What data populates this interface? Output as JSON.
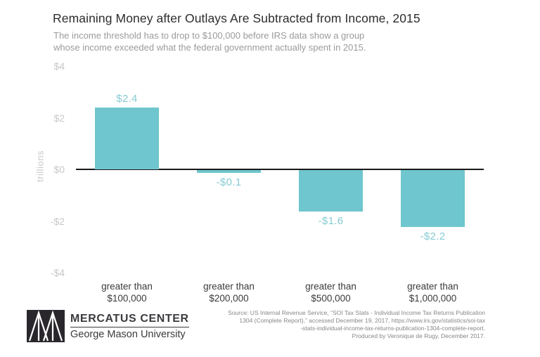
{
  "header": {
    "title": "Remaining Money after Outlays Are Subtracted from Income, 2015",
    "subtitle_lines": [
      "The income threshold has to drop to $100,000 before IRS data show a group",
      "whose income exceeded what the federal government actually spent in 2015."
    ]
  },
  "chart_data": {
    "type": "bar",
    "title": "Remaining Money after Outlays Are Subtracted from Income, 2015",
    "categories": [
      [
        "greater than",
        "$100,000"
      ],
      [
        "greater than",
        "$200,000"
      ],
      [
        "greater than",
        "$500,000"
      ],
      [
        "greater than",
        "$1,000,000"
      ]
    ],
    "values": [
      2.4,
      -0.1,
      -1.6,
      -2.2
    ],
    "value_labels": [
      "$2.4",
      "-$0.1",
      "-$1.6",
      "-$2.2"
    ],
    "xlabel": "",
    "ylabel": "trillions",
    "ylim": [
      -4,
      4
    ],
    "yticks": [
      {
        "value": 4,
        "label": "$4"
      },
      {
        "value": 2,
        "label": "$2"
      },
      {
        "value": 0,
        "label": "$0"
      },
      {
        "value": -2,
        "label": "-$2"
      },
      {
        "value": -4,
        "label": "-$4"
      }
    ],
    "grid": false,
    "legend": "none",
    "bar_color": "#6fc6ce",
    "value_label_color": "#85cbd3",
    "zero_line_color": "#191919"
  },
  "footer": {
    "logo": {
      "name": "MERCATUS CENTER",
      "subname": "George Mason University"
    },
    "source_lines": [
      "Source: US Internal Revenue Service, “SOI Tax Stats - Individual Income Tax Returns Publication",
      "1304 (Complete Report),” accessed December 19, 2017, https://www.irs.gov/statistics/soi-tax",
      "-stats-individual-income-tax-returns-publication-1304-complete-report.",
      "Produced by Veronique de Rugy, December 2017."
    ]
  }
}
